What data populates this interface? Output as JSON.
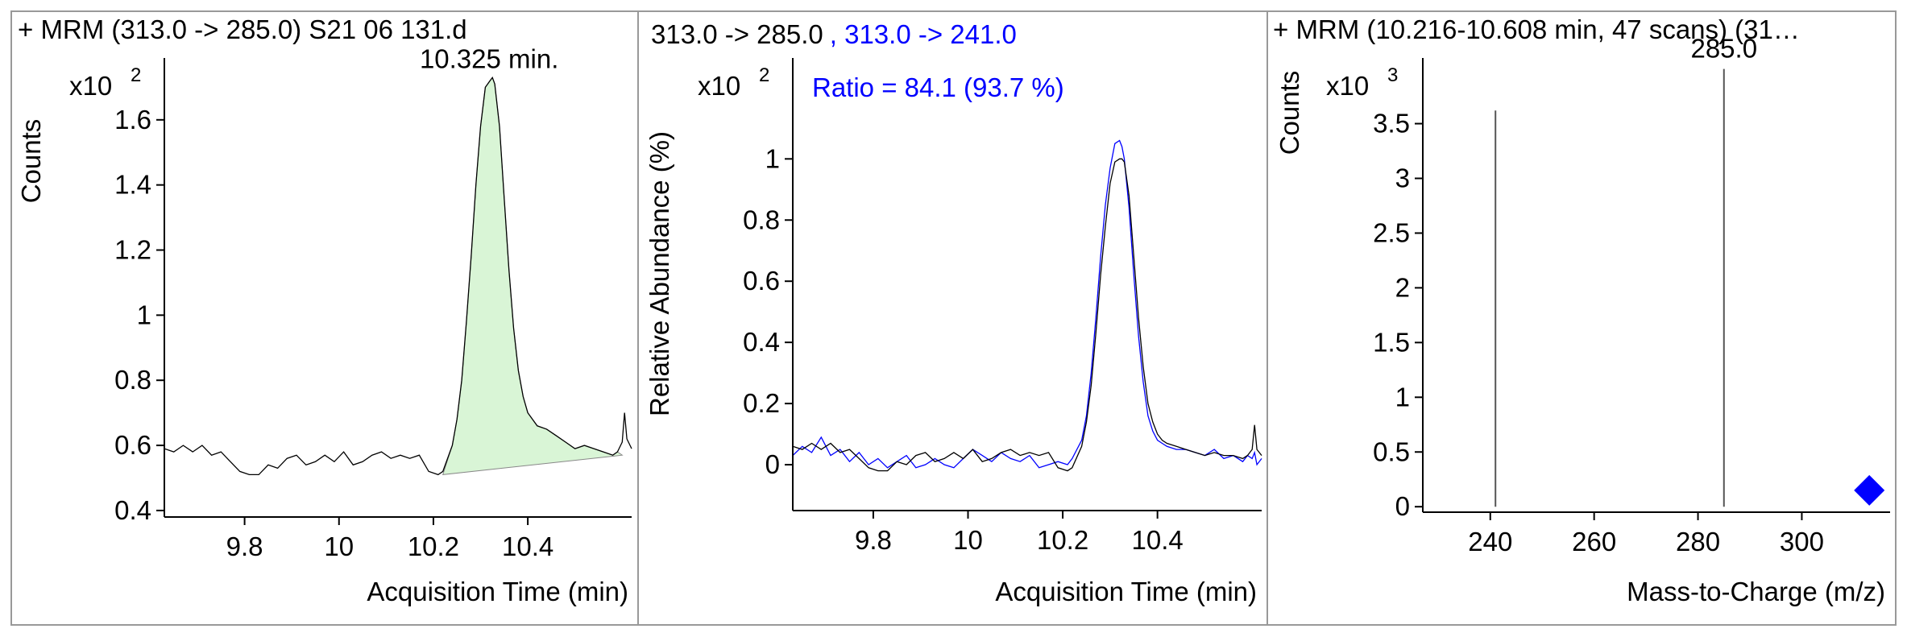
{
  "colors": {
    "black": "#000000",
    "blue": "#0000ff",
    "fill_green": "#d9f5d6",
    "axis": "#000000",
    "border": "#999999"
  },
  "chart_data": [
    {
      "type": "line",
      "title": "+ MRM (313.0 -> 285.0) S21 06 131.d",
      "ylabel": "Counts",
      "xlabel": "Acquisition Time (min)",
      "exponent_base": "x10",
      "exponent_power": "2",
      "peak_label": "10.325 min.",
      "peak_x": 10.325,
      "xlim": [
        9.63,
        10.62
      ],
      "ylim": [
        0.38,
        1.79
      ],
      "xticks": [
        9.8,
        10,
        10.2,
        10.4
      ],
      "xtick_labels": [
        "9.8",
        "10",
        "10.2",
        "10.4"
      ],
      "yticks": [
        0.4,
        0.6,
        0.8,
        1,
        1.2,
        1.4,
        1.6
      ],
      "ytick_labels": [
        "0.4",
        "0.6",
        "0.8",
        "1",
        "1.2",
        "1.4",
        "1.6"
      ],
      "integration": {
        "start": [
          10.22,
          0.51
        ],
        "end": [
          10.6,
          0.57
        ]
      },
      "series": [
        {
          "color": "#000000",
          "x": [
            9.63,
            9.65,
            9.67,
            9.69,
            9.71,
            9.73,
            9.75,
            9.77,
            9.79,
            9.81,
            9.83,
            9.85,
            9.87,
            9.89,
            9.91,
            9.93,
            9.95,
            9.97,
            9.99,
            10.01,
            10.03,
            10.05,
            10.07,
            10.09,
            10.11,
            10.13,
            10.15,
            10.17,
            10.19,
            10.21,
            10.22,
            10.24,
            10.25,
            10.26,
            10.27,
            10.28,
            10.29,
            10.3,
            10.31,
            10.32,
            10.325,
            10.33,
            10.34,
            10.35,
            10.36,
            10.37,
            10.38,
            10.39,
            10.4,
            10.41,
            10.42,
            10.44,
            10.46,
            10.48,
            10.5,
            10.52,
            10.54,
            10.56,
            10.58,
            10.59,
            10.6,
            10.605,
            10.61,
            10.62
          ],
          "y": [
            0.59,
            0.58,
            0.6,
            0.58,
            0.6,
            0.57,
            0.58,
            0.55,
            0.52,
            0.51,
            0.51,
            0.54,
            0.53,
            0.56,
            0.57,
            0.54,
            0.55,
            0.57,
            0.55,
            0.58,
            0.54,
            0.55,
            0.57,
            0.58,
            0.56,
            0.57,
            0.56,
            0.57,
            0.52,
            0.51,
            0.52,
            0.6,
            0.68,
            0.8,
            0.98,
            1.18,
            1.4,
            1.58,
            1.7,
            1.72,
            1.73,
            1.71,
            1.58,
            1.36,
            1.14,
            0.96,
            0.83,
            0.75,
            0.7,
            0.68,
            0.66,
            0.65,
            0.63,
            0.61,
            0.59,
            0.6,
            0.59,
            0.58,
            0.57,
            0.58,
            0.61,
            0.7,
            0.62,
            0.59
          ]
        }
      ]
    },
    {
      "type": "line",
      "title_black": "313.0 -> 285.0",
      "title_blue": ", 313.0 -> 241.0",
      "ylabel": "Relative Abundance (%)",
      "xlabel": "Acquisition Time (min)",
      "exponent_base": "x10",
      "exponent_power": "2",
      "ratio_label": "Ratio = 84.1 (93.7 %)",
      "xlim": [
        9.63,
        10.62
      ],
      "ylim": [
        -0.15,
        1.33
      ],
      "xticks": [
        9.8,
        10,
        10.2,
        10.4
      ],
      "xtick_labels": [
        "9.8",
        "10",
        "10.2",
        "10.4"
      ],
      "yticks": [
        0,
        0.2,
        0.4,
        0.6,
        0.8,
        1
      ],
      "ytick_labels": [
        "0",
        "0.2",
        "0.4",
        "0.6",
        "0.8",
        "1"
      ],
      "series": [
        {
          "color": "#000000",
          "x": [
            9.63,
            9.65,
            9.67,
            9.69,
            9.71,
            9.73,
            9.75,
            9.77,
            9.79,
            9.81,
            9.83,
            9.85,
            9.87,
            9.89,
            9.91,
            9.93,
            9.95,
            9.97,
            9.99,
            10.01,
            10.03,
            10.05,
            10.07,
            10.09,
            10.11,
            10.13,
            10.15,
            10.17,
            10.19,
            10.21,
            10.22,
            10.24,
            10.25,
            10.26,
            10.27,
            10.28,
            10.29,
            10.3,
            10.31,
            10.32,
            10.325,
            10.33,
            10.34,
            10.35,
            10.36,
            10.37,
            10.38,
            10.39,
            10.4,
            10.41,
            10.42,
            10.44,
            10.46,
            10.48,
            10.5,
            10.52,
            10.54,
            10.56,
            10.58,
            10.59,
            10.6,
            10.605,
            10.61,
            10.62
          ],
          "y": [
            0.06,
            0.05,
            0.07,
            0.05,
            0.07,
            0.04,
            0.05,
            0.02,
            -0.01,
            -0.02,
            -0.02,
            0.01,
            0.0,
            0.03,
            0.04,
            0.01,
            0.02,
            0.04,
            0.02,
            0.05,
            0.01,
            0.02,
            0.04,
            0.05,
            0.03,
            0.04,
            0.03,
            0.04,
            -0.01,
            -0.02,
            -0.01,
            0.06,
            0.14,
            0.26,
            0.43,
            0.62,
            0.78,
            0.92,
            0.99,
            1.0,
            1.0,
            0.99,
            0.88,
            0.68,
            0.48,
            0.32,
            0.2,
            0.14,
            0.1,
            0.08,
            0.07,
            0.06,
            0.05,
            0.04,
            0.03,
            0.04,
            0.03,
            0.03,
            0.02,
            0.03,
            0.05,
            0.13,
            0.05,
            0.03
          ]
        },
        {
          "color": "#0000ff",
          "x": [
            9.63,
            9.65,
            9.67,
            9.69,
            9.71,
            9.73,
            9.75,
            9.77,
            9.79,
            9.81,
            9.83,
            9.85,
            9.87,
            9.89,
            9.91,
            9.93,
            9.95,
            9.97,
            9.99,
            10.01,
            10.03,
            10.05,
            10.07,
            10.09,
            10.11,
            10.13,
            10.15,
            10.17,
            10.19,
            10.21,
            10.22,
            10.24,
            10.25,
            10.26,
            10.27,
            10.28,
            10.29,
            10.3,
            10.31,
            10.32,
            10.325,
            10.33,
            10.34,
            10.35,
            10.36,
            10.37,
            10.38,
            10.39,
            10.4,
            10.41,
            10.42,
            10.44,
            10.46,
            10.48,
            10.5,
            10.52,
            10.54,
            10.56,
            10.58,
            10.59,
            10.6,
            10.605,
            10.61,
            10.62
          ],
          "y": [
            0.03,
            0.06,
            0.04,
            0.09,
            0.03,
            0.05,
            0.01,
            0.04,
            0.0,
            0.02,
            -0.01,
            0.01,
            0.03,
            -0.01,
            0.0,
            0.02,
            0.0,
            -0.01,
            0.02,
            0.05,
            0.03,
            0.01,
            0.04,
            0.02,
            0.01,
            0.03,
            -0.01,
            0.0,
            0.01,
            0.0,
            0.02,
            0.08,
            0.16,
            0.3,
            0.48,
            0.68,
            0.85,
            0.97,
            1.05,
            1.06,
            1.04,
            1.0,
            0.84,
            0.62,
            0.42,
            0.27,
            0.16,
            0.11,
            0.08,
            0.07,
            0.06,
            0.05,
            0.05,
            0.04,
            0.03,
            0.05,
            0.02,
            0.03,
            0.01,
            0.03,
            0.02,
            0.04,
            0.0,
            0.02
          ]
        }
      ]
    },
    {
      "type": "bar",
      "title": "+ MRM (10.216-10.608 min, 47 scans) (31…",
      "ylabel": "Counts",
      "xlabel": "Mass-to-Charge (m/z)",
      "exponent_base": "x10",
      "exponent_power": "3",
      "xlim": [
        227,
        317
      ],
      "ylim": [
        -0.05,
        4.1
      ],
      "xticks": [
        240,
        260,
        280,
        300
      ],
      "xtick_labels": [
        "240",
        "260",
        "280",
        "300"
      ],
      "yticks": [
        0,
        0.5,
        1,
        1.5,
        2,
        2.5,
        3,
        3.5
      ],
      "ytick_labels": [
        "0",
        "0.5",
        "1",
        "1.5",
        "2",
        "2.5",
        "3",
        "3.5"
      ],
      "bars": [
        {
          "x": 241.0,
          "y": 3.62
        },
        {
          "x": 285.0,
          "y": 4.0,
          "label": "285.0"
        }
      ],
      "precursor": {
        "x": 313.0,
        "y": 0.15,
        "color": "#0000ff"
      }
    }
  ]
}
